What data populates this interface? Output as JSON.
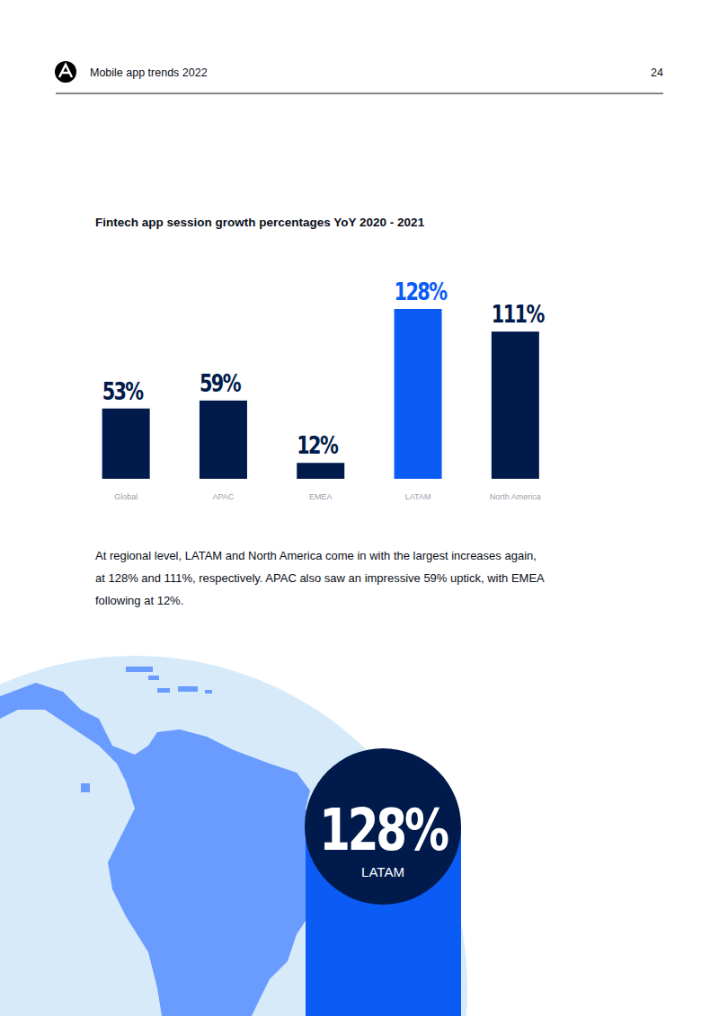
{
  "header": {
    "title": "Mobile app trends 2022",
    "page": "24"
  },
  "chart_data": {
    "type": "bar",
    "title": "Fintech app session growth percentages YoY 2020 - 2021",
    "categories": [
      "Global",
      "APAC",
      "EMEA",
      "LATAM",
      "North America"
    ],
    "values": [
      53,
      59,
      12,
      128,
      111
    ],
    "value_labels": [
      "53%",
      "59%",
      "12%",
      "128%",
      "111%"
    ],
    "colors": [
      "#001a4b",
      "#001a4b",
      "#001a4b",
      "#0a5cf5",
      "#001a4b"
    ],
    "data_labels": true,
    "tick_labels": "x"
  },
  "text": {
    "paragraph": "At regional level, LATAM and North America come in with the largest increases again, at 128% and 111%, respectively. APAC also saw an impressive 59% uptick, with EMEA following at 12%."
  },
  "callout": {
    "text": "128%",
    "label": "LATAM"
  }
}
